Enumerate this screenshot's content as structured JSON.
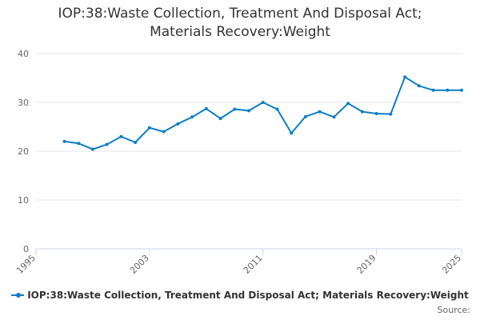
{
  "colors": {
    "series": "#0f7ec4",
    "grid": "#e6e6e6",
    "axis": "#ccd6eb",
    "text": "#666666"
  },
  "source_label": "Source:",
  "chart_data": {
    "type": "line",
    "title_lines": [
      "IOP:38:Waste Collection, Treatment And Disposal Act;",
      "Materials Recovery:Weight"
    ],
    "xlabel": "",
    "ylabel": "",
    "xlim": [
      1995,
      2025
    ],
    "ylim": [
      0,
      40
    ],
    "x_ticks": [
      1995,
      2003,
      2011,
      2019,
      2025
    ],
    "y_ticks": [
      0,
      10,
      20,
      30,
      40
    ],
    "grid": true,
    "legend_position": "bottom",
    "series": [
      {
        "name": "IOP:38:Waste Collection, Treatment And Disposal Act; Materials Recovery:Weight",
        "x": [
          1997,
          1998,
          1999,
          2000,
          2001,
          2002,
          2003,
          2004,
          2005,
          2006,
          2007,
          2008,
          2009,
          2010,
          2011,
          2012,
          2013,
          2014,
          2015,
          2016,
          2017,
          2018,
          2019,
          2020,
          2021,
          2022,
          2023,
          2024,
          2025
        ],
        "values": [
          22.0,
          21.6,
          20.4,
          21.4,
          23.0,
          21.8,
          24.8,
          24.0,
          25.6,
          27.0,
          28.7,
          26.7,
          28.6,
          28.3,
          30.0,
          28.6,
          23.7,
          27.1,
          28.1,
          27.0,
          29.8,
          28.1,
          27.7,
          27.6,
          35.2,
          33.4,
          32.5,
          32.5,
          32.5
        ]
      }
    ]
  }
}
